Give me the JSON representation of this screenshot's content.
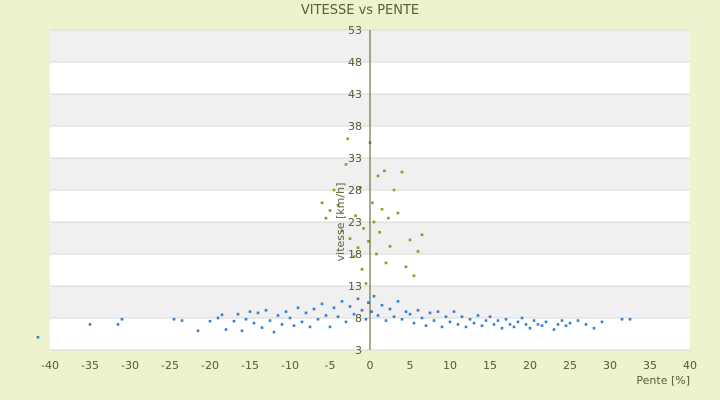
{
  "chart_data": {
    "type": "scatter",
    "title": "VITESSE vs PENTE",
    "xlabel": "Pente [%]",
    "ylabel": "vitesse [km/h]",
    "xlim": [
      -40,
      40
    ],
    "ylim": [
      3,
      53
    ],
    "x_ticks": [
      "-40",
      "-35",
      "-30",
      "-25",
      "-20",
      "-15",
      "-10",
      "-5",
      "0",
      "5",
      "10",
      "15",
      "20",
      "25",
      "30",
      "35",
      "40"
    ],
    "y_ticks": [
      "3",
      "8",
      "13",
      "18",
      "23",
      "28",
      "33",
      "38",
      "43",
      "48",
      "53"
    ],
    "grid": true,
    "colors": {
      "background": "#eef2cf",
      "stripe": "#f0f0f0",
      "zero_axis": "#55591c",
      "points": "#2f7fd4"
    },
    "series": [
      {
        "values": [
          [
            -41.5,
            5.0
          ],
          [
            -35.0,
            7.0
          ],
          [
            -31.5,
            7.0
          ],
          [
            -31.0,
            7.8
          ],
          [
            -24.5,
            7.8
          ],
          [
            -23.5,
            7.6
          ],
          [
            -21.5,
            6.0
          ],
          [
            -20.0,
            7.5
          ],
          [
            -19.0,
            8.0
          ],
          [
            -18.5,
            8.5
          ],
          [
            -18.0,
            6.2
          ],
          [
            -17.0,
            7.5
          ],
          [
            -16.5,
            8.6
          ],
          [
            -16.0,
            6.0
          ],
          [
            -15.5,
            7.8
          ],
          [
            -15.0,
            9.0
          ],
          [
            -14.5,
            7.2
          ],
          [
            -14.0,
            8.8
          ],
          [
            -13.5,
            6.5
          ],
          [
            -13.0,
            9.2
          ],
          [
            -12.5,
            7.6
          ],
          [
            -12.0,
            5.8
          ],
          [
            -11.5,
            8.4
          ],
          [
            -11.0,
            7.0
          ],
          [
            -10.5,
            9.0
          ],
          [
            -10.0,
            8.0
          ],
          [
            -9.5,
            6.8
          ],
          [
            -9.0,
            9.6
          ],
          [
            -8.5,
            7.4
          ],
          [
            -8.0,
            8.8
          ],
          [
            -7.5,
            6.6
          ],
          [
            -7.0,
            9.4
          ],
          [
            -6.5,
            7.8
          ],
          [
            -6.0,
            10.2
          ],
          [
            -5.5,
            8.4
          ],
          [
            -5.0,
            6.6
          ],
          [
            -4.5,
            9.6
          ],
          [
            -4.0,
            8.2
          ],
          [
            -3.5,
            10.6
          ],
          [
            -3.0,
            7.4
          ],
          [
            -2.5,
            9.8
          ],
          [
            -2.0,
            8.6
          ],
          [
            -1.5,
            11.0
          ],
          [
            -1.0,
            9.2
          ],
          [
            -0.5,
            7.8
          ],
          [
            -0.2,
            10.4
          ],
          [
            0.2,
            9.0
          ],
          [
            0.5,
            11.4
          ],
          [
            1.0,
            8.4
          ],
          [
            1.5,
            10.0
          ],
          [
            2.0,
            7.6
          ],
          [
            2.5,
            9.4
          ],
          [
            3.0,
            8.2
          ],
          [
            3.5,
            10.6
          ],
          [
            4.0,
            7.8
          ],
          [
            4.5,
            9.0
          ],
          [
            5.0,
            8.6
          ],
          [
            5.5,
            7.2
          ],
          [
            6.0,
            9.2
          ],
          [
            6.5,
            8.0
          ],
          [
            7.0,
            6.8
          ],
          [
            7.5,
            8.8
          ],
          [
            8.0,
            7.6
          ],
          [
            8.5,
            9.0
          ],
          [
            9.0,
            6.6
          ],
          [
            9.5,
            8.2
          ],
          [
            10.0,
            7.4
          ],
          [
            10.5,
            9.0
          ],
          [
            11.0,
            7.0
          ],
          [
            11.5,
            8.2
          ],
          [
            12.0,
            6.6
          ],
          [
            12.5,
            7.8
          ],
          [
            13.0,
            7.2
          ],
          [
            13.5,
            8.4
          ],
          [
            14.0,
            6.8
          ],
          [
            14.5,
            7.6
          ],
          [
            15.0,
            8.2
          ],
          [
            15.5,
            7.0
          ],
          [
            16.0,
            7.6
          ],
          [
            16.5,
            6.4
          ],
          [
            17.0,
            7.8
          ],
          [
            17.5,
            7.0
          ],
          [
            18.0,
            6.6
          ],
          [
            18.5,
            7.4
          ],
          [
            19.0,
            8.0
          ],
          [
            19.5,
            7.0
          ],
          [
            20.0,
            6.4
          ],
          [
            20.5,
            7.6
          ],
          [
            21.0,
            7.0
          ],
          [
            21.5,
            6.8
          ],
          [
            22.0,
            7.4
          ],
          [
            23.0,
            6.2
          ],
          [
            23.5,
            7.0
          ],
          [
            24.0,
            7.6
          ],
          [
            24.5,
            6.8
          ],
          [
            25.0,
            7.2
          ],
          [
            26.0,
            7.6
          ],
          [
            27.0,
            7.0
          ],
          [
            28.0,
            6.4
          ],
          [
            29.0,
            7.4
          ],
          [
            31.5,
            7.8
          ],
          [
            32.5,
            7.8
          ],
          [
            -6.0,
            26.0
          ],
          [
            -5.5,
            23.6
          ],
          [
            -5.0,
            24.8
          ],
          [
            -4.5,
            28.0
          ],
          [
            -4.0,
            25.6
          ],
          [
            -3.5,
            21.6
          ],
          [
            -3.0,
            32.0
          ],
          [
            -2.8,
            36.0
          ],
          [
            -2.5,
            20.4
          ],
          [
            -2.0,
            17.6
          ],
          [
            -1.8,
            24.0
          ],
          [
            -1.5,
            19.0
          ],
          [
            -1.2,
            28.4
          ],
          [
            -1.0,
            15.6
          ],
          [
            -0.8,
            22.0
          ],
          [
            -0.5,
            13.4
          ],
          [
            -0.2,
            20.0
          ],
          [
            0.0,
            35.4
          ],
          [
            0.3,
            26.0
          ],
          [
            0.5,
            23.0
          ],
          [
            0.8,
            18.0
          ],
          [
            1.0,
            30.2
          ],
          [
            1.2,
            21.4
          ],
          [
            1.5,
            25.0
          ],
          [
            1.8,
            31.0
          ],
          [
            2.0,
            16.6
          ],
          [
            2.3,
            23.6
          ],
          [
            2.5,
            19.2
          ],
          [
            3.0,
            28.0
          ],
          [
            3.5,
            24.4
          ],
          [
            4.0,
            30.8
          ],
          [
            4.5,
            16.0
          ],
          [
            5.0,
            20.2
          ],
          [
            5.5,
            14.6
          ],
          [
            6.0,
            18.4
          ],
          [
            6.5,
            21.0
          ]
        ]
      }
    ]
  }
}
